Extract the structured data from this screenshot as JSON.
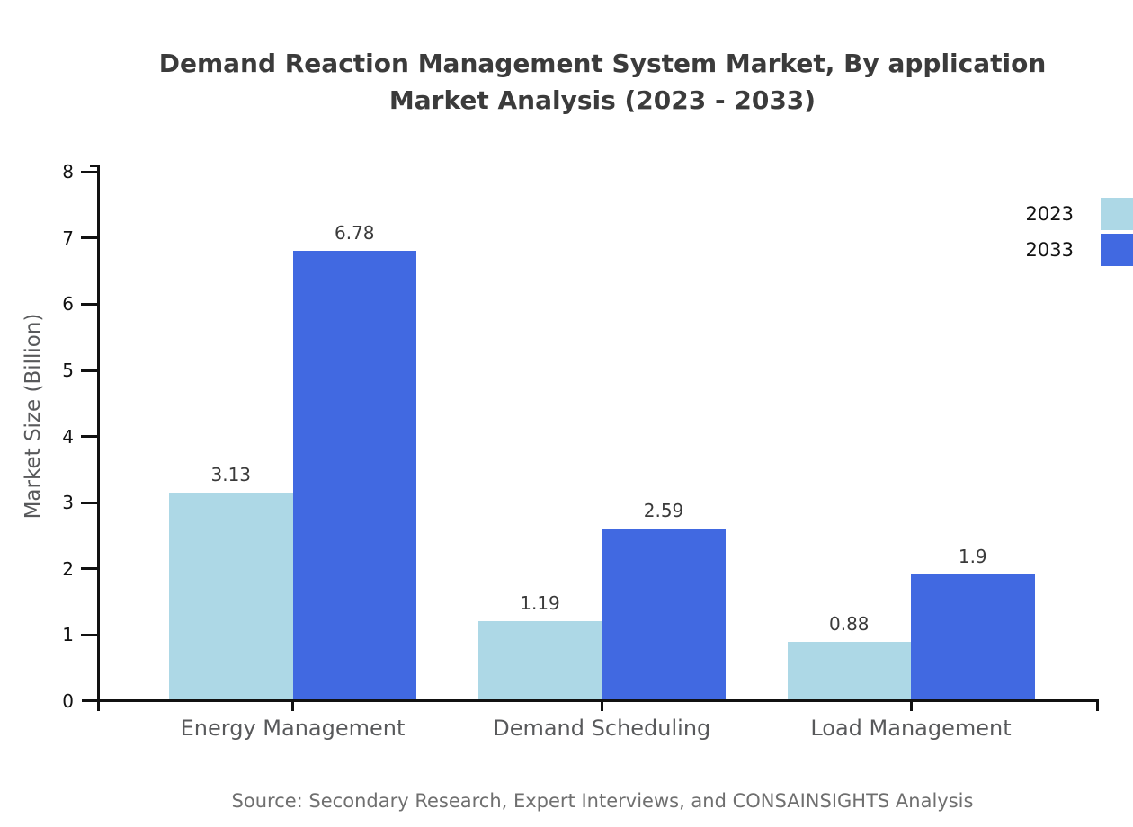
{
  "header": {
    "title_line1": "Demand Reaction Management System Market, By application",
    "title_line2": "Market Analysis (2023 - 2033)"
  },
  "chart_data": {
    "type": "bar",
    "title": "Demand Reaction Management System Market, By application Market Analysis (2023 - 2033)",
    "categories": [
      "Energy Management",
      "Demand Scheduling",
      "Load Management"
    ],
    "series": [
      {
        "name": "2023",
        "color": "#ADD8E6",
        "values": [
          3.13,
          1.19,
          0.88
        ]
      },
      {
        "name": "2033",
        "color": "#4169E1",
        "values": [
          6.78,
          2.59,
          1.9
        ]
      }
    ],
    "xlabel": "",
    "ylabel": "Market Size (Billion)",
    "ylim": [
      0,
      8
    ],
    "yticks": [
      0,
      1,
      2,
      3,
      4,
      5,
      6,
      7,
      8
    ],
    "grid": false,
    "bar_value_labels_shown": true,
    "legend_position": "outside-right-top"
  },
  "legend": {
    "items": [
      {
        "label": "2023",
        "color": "#ADD8E6"
      },
      {
        "label": "2033",
        "color": "#4169E1"
      }
    ]
  },
  "footer": {
    "source": "Source: Secondary Research, Expert Interviews, and CONSAINSIGHTS Analysis"
  },
  "colors": {
    "series_2023": "#ADD8E6",
    "series_2033": "#4169E1",
    "axis": "#111111",
    "title_text": "#3b3b3b",
    "axis_text": "#58595b",
    "source_text": "#6f6f6f"
  }
}
